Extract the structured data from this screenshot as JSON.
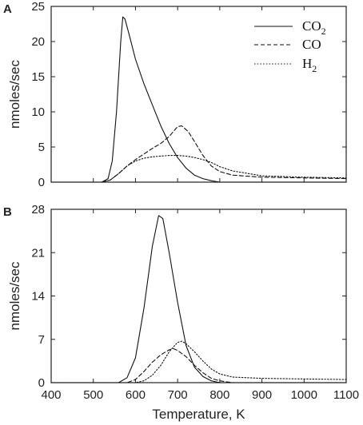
{
  "chart_data": [
    {
      "panel": "A",
      "type": "line",
      "xlabel": "",
      "ylabel": "nmoles/sec",
      "xlim": [
        400,
        1100
      ],
      "ylim": [
        0,
        25
      ],
      "x_ticks": [
        400,
        500,
        600,
        700,
        800,
        900,
        1000,
        1100
      ],
      "y_ticks": [
        0,
        5,
        10,
        15,
        20,
        25
      ],
      "x_tick_labels_shown": false,
      "legend": {
        "placement": "top-right"
      },
      "series": [
        {
          "name": "CO",
          "sub": "2",
          "style": "solid",
          "points": [
            [
              400,
              0
            ],
            [
              520,
              0
            ],
            [
              535,
              0.5
            ],
            [
              545,
              3
            ],
            [
              555,
              10
            ],
            [
              565,
              20
            ],
            [
              570,
              23.5
            ],
            [
              575,
              23.2
            ],
            [
              585,
              21
            ],
            [
              600,
              17.5
            ],
            [
              620,
              14
            ],
            [
              640,
              11
            ],
            [
              660,
              8
            ],
            [
              680,
              5.5
            ],
            [
              700,
              3.5
            ],
            [
              720,
              2
            ],
            [
              740,
              1
            ],
            [
              760,
              0.5
            ],
            [
              780,
              0.2
            ],
            [
              800,
              0
            ],
            [
              1100,
              0
            ]
          ]
        },
        {
          "name": "CO",
          "sub": "",
          "style": "dashed",
          "points": [
            [
              400,
              0
            ],
            [
              520,
              0
            ],
            [
              540,
              0.3
            ],
            [
              560,
              1.2
            ],
            [
              580,
              2.3
            ],
            [
              600,
              3.2
            ],
            [
              620,
              4
            ],
            [
              640,
              4.8
            ],
            [
              660,
              5.5
            ],
            [
              680,
              6.5
            ],
            [
              700,
              7.9
            ],
            [
              710,
              8
            ],
            [
              725,
              7.2
            ],
            [
              740,
              5.8
            ],
            [
              760,
              3.8
            ],
            [
              780,
              2.3
            ],
            [
              800,
              1.5
            ],
            [
              830,
              1
            ],
            [
              900,
              0.7
            ],
            [
              1000,
              0.6
            ],
            [
              1100,
              0.5
            ]
          ]
        },
        {
          "name": "H",
          "sub": "2",
          "style": "dotted",
          "points": [
            [
              400,
              0
            ],
            [
              520,
              0
            ],
            [
              540,
              0.3
            ],
            [
              560,
              1.2
            ],
            [
              580,
              2.3
            ],
            [
              600,
              3
            ],
            [
              620,
              3.4
            ],
            [
              640,
              3.6
            ],
            [
              660,
              3.7
            ],
            [
              680,
              3.8
            ],
            [
              700,
              3.8
            ],
            [
              720,
              3.7
            ],
            [
              740,
              3.5
            ],
            [
              760,
              3.2
            ],
            [
              780,
              2.8
            ],
            [
              800,
              2.2
            ],
            [
              830,
              1.6
            ],
            [
              900,
              0.9
            ],
            [
              1000,
              0.7
            ],
            [
              1100,
              0.6
            ]
          ]
        }
      ]
    },
    {
      "panel": "B",
      "type": "line",
      "xlabel": "Temperature, K",
      "ylabel": "nmoles/sec",
      "xlim": [
        400,
        1100
      ],
      "ylim": [
        0,
        28
      ],
      "x_ticks": [
        400,
        500,
        600,
        700,
        800,
        900,
        1000,
        1100
      ],
      "y_ticks": [
        0,
        7,
        14,
        21,
        28
      ],
      "x_tick_labels_shown": true,
      "series": [
        {
          "name": "CO2",
          "style": "solid",
          "points": [
            [
              400,
              0
            ],
            [
              560,
              0
            ],
            [
              580,
              0.8
            ],
            [
              600,
              4
            ],
            [
              620,
              12
            ],
            [
              640,
              22
            ],
            [
              655,
              27
            ],
            [
              665,
              26.5
            ],
            [
              680,
              21
            ],
            [
              700,
              13
            ],
            [
              720,
              6
            ],
            [
              740,
              2.5
            ],
            [
              760,
              1
            ],
            [
              780,
              0.3
            ],
            [
              800,
              0
            ],
            [
              1100,
              0
            ]
          ]
        },
        {
          "name": "CO",
          "style": "dashed",
          "points": [
            [
              400,
              0
            ],
            [
              580,
              0
            ],
            [
              600,
              0.5
            ],
            [
              620,
              1.8
            ],
            [
              640,
              3.3
            ],
            [
              660,
              4.5
            ],
            [
              680,
              5.3
            ],
            [
              690,
              5.5
            ],
            [
              700,
              5.2
            ],
            [
              720,
              4.2
            ],
            [
              740,
              2.8
            ],
            [
              760,
              1.6
            ],
            [
              780,
              0.7
            ],
            [
              800,
              0.3
            ],
            [
              830,
              0
            ],
            [
              1100,
              0
            ]
          ]
        },
        {
          "name": "H2",
          "style": "dotted",
          "points": [
            [
              400,
              0
            ],
            [
              600,
              0
            ],
            [
              620,
              0.3
            ],
            [
              640,
              1.2
            ],
            [
              660,
              2.8
            ],
            [
              680,
              5
            ],
            [
              700,
              6.5
            ],
            [
              710,
              6.7
            ],
            [
              720,
              6.3
            ],
            [
              740,
              5
            ],
            [
              760,
              3.5
            ],
            [
              780,
              2.2
            ],
            [
              800,
              1.4
            ],
            [
              830,
              0.9
            ],
            [
              900,
              0.7
            ],
            [
              1000,
              0.6
            ],
            [
              1100,
              0.5
            ]
          ]
        }
      ]
    }
  ]
}
